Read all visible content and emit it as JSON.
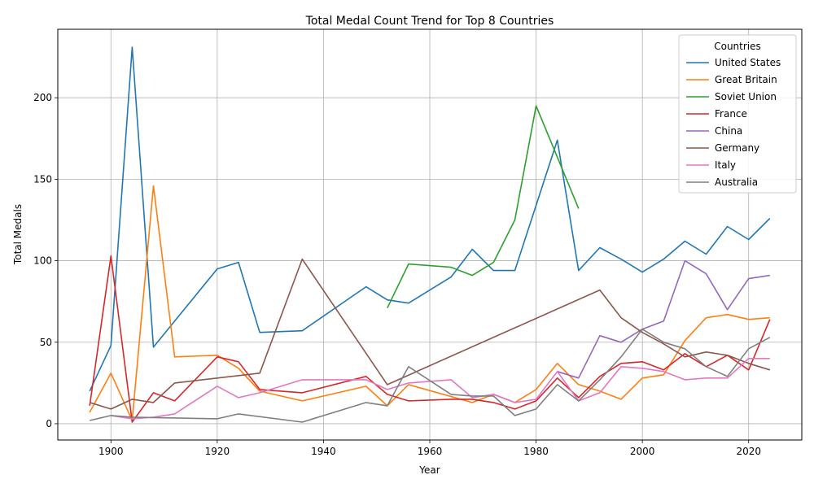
{
  "chart_data": {
    "type": "line",
    "title": "Total Medal Count Trend for Top 8 Countries",
    "xlabel": "Year",
    "ylabel": "Total Medals",
    "xlim": [
      1890,
      2030
    ],
    "ylim": [
      -10,
      242
    ],
    "xticks": [
      1900,
      1920,
      1940,
      1960,
      1980,
      2000,
      2020
    ],
    "yticks": [
      0,
      50,
      100,
      150,
      200
    ],
    "grid": true,
    "legend": {
      "title": "Countries",
      "placement": "top-right"
    },
    "series": [
      {
        "name": "United States",
        "color": "#1f77b4",
        "points": [
          [
            1896,
            20
          ],
          [
            1900,
            48
          ],
          [
            1904,
            231
          ],
          [
            1908,
            47
          ],
          [
            1920,
            95
          ],
          [
            1924,
            99
          ],
          [
            1928,
            56
          ],
          [
            1936,
            57
          ],
          [
            1948,
            84
          ],
          [
            1952,
            76
          ],
          [
            1956,
            74
          ],
          [
            1964,
            90
          ],
          [
            1968,
            107
          ],
          [
            1972,
            94
          ],
          [
            1976,
            94
          ],
          [
            1984,
            174
          ],
          [
            1988,
            94
          ],
          [
            1992,
            108
          ],
          [
            1996,
            101
          ],
          [
            2000,
            93
          ],
          [
            2004,
            101
          ],
          [
            2008,
            112
          ],
          [
            2012,
            104
          ],
          [
            2016,
            121
          ],
          [
            2020,
            113
          ],
          [
            2024,
            126
          ]
        ]
      },
      {
        "name": "Great Britain",
        "color": "#ff7f0e",
        "points": [
          [
            1896,
            7
          ],
          [
            1900,
            31
          ],
          [
            1904,
            2
          ],
          [
            1908,
            146
          ],
          [
            1912,
            41
          ],
          [
            1920,
            42
          ],
          [
            1924,
            34
          ],
          [
            1928,
            20
          ],
          [
            1936,
            14
          ],
          [
            1948,
            23
          ],
          [
            1952,
            11
          ],
          [
            1956,
            24
          ],
          [
            1968,
            13
          ],
          [
            1972,
            18
          ],
          [
            1976,
            13
          ],
          [
            1980,
            21
          ],
          [
            1984,
            37
          ],
          [
            1988,
            24
          ],
          [
            1992,
            20
          ],
          [
            1996,
            15
          ],
          [
            2000,
            28
          ],
          [
            2004,
            30
          ],
          [
            2008,
            51
          ],
          [
            2012,
            65
          ],
          [
            2016,
            67
          ],
          [
            2020,
            64
          ],
          [
            2024,
            65
          ]
        ]
      },
      {
        "name": "Soviet Union",
        "color": "#2ca02c",
        "points": [
          [
            1952,
            71
          ],
          [
            1956,
            98
          ],
          [
            1964,
            96
          ],
          [
            1968,
            91
          ],
          [
            1972,
            99
          ],
          [
            1976,
            125
          ],
          [
            1980,
            195
          ],
          [
            1988,
            132
          ]
        ]
      },
      {
        "name": "France",
        "color": "#d62728",
        "points": [
          [
            1896,
            11
          ],
          [
            1900,
            103
          ],
          [
            1904,
            1
          ],
          [
            1908,
            19
          ],
          [
            1912,
            14
          ],
          [
            1920,
            41
          ],
          [
            1924,
            38
          ],
          [
            1928,
            21
          ],
          [
            1936,
            19
          ],
          [
            1948,
            29
          ],
          [
            1952,
            18
          ],
          [
            1956,
            14
          ],
          [
            1964,
            15
          ],
          [
            1968,
            15
          ],
          [
            1972,
            13
          ],
          [
            1976,
            9
          ],
          [
            1980,
            14
          ],
          [
            1984,
            28
          ],
          [
            1988,
            16
          ],
          [
            1992,
            29
          ],
          [
            1996,
            37
          ],
          [
            2000,
            38
          ],
          [
            2004,
            33
          ],
          [
            2008,
            43
          ],
          [
            2012,
            35
          ],
          [
            2016,
            42
          ],
          [
            2020,
            33
          ],
          [
            2024,
            64
          ]
        ]
      },
      {
        "name": "China",
        "color": "#9467bd",
        "points": [
          [
            1984,
            32
          ],
          [
            1988,
            28
          ],
          [
            1992,
            54
          ],
          [
            1996,
            50
          ],
          [
            2000,
            58
          ],
          [
            2004,
            63
          ],
          [
            2008,
            100
          ],
          [
            2012,
            92
          ],
          [
            2016,
            70
          ],
          [
            2020,
            89
          ],
          [
            2024,
            91
          ]
        ]
      },
      {
        "name": "Germany",
        "color": "#8c564b",
        "points": [
          [
            1896,
            13
          ],
          [
            1900,
            9
          ],
          [
            1904,
            15
          ],
          [
            1908,
            13
          ],
          [
            1912,
            25
          ],
          [
            1928,
            31
          ],
          [
            1936,
            101
          ],
          [
            1952,
            24
          ],
          [
            1992,
            82
          ],
          [
            1996,
            65
          ],
          [
            2000,
            56
          ],
          [
            2004,
            49
          ],
          [
            2008,
            41
          ],
          [
            2012,
            44
          ],
          [
            2016,
            42
          ],
          [
            2020,
            37
          ],
          [
            2024,
            33
          ]
        ]
      },
      {
        "name": "Italy",
        "color": "#e377c2",
        "points": [
          [
            1900,
            5
          ],
          [
            1904,
            3
          ],
          [
            1908,
            4
          ],
          [
            1912,
            6
          ],
          [
            1920,
            23
          ],
          [
            1924,
            16
          ],
          [
            1928,
            19
          ],
          [
            1936,
            27
          ],
          [
            1948,
            27
          ],
          [
            1952,
            21
          ],
          [
            1956,
            25
          ],
          [
            1964,
            27
          ],
          [
            1968,
            16
          ],
          [
            1972,
            18
          ],
          [
            1976,
            13
          ],
          [
            1980,
            15
          ],
          [
            1984,
            32
          ],
          [
            1988,
            14
          ],
          [
            1992,
            19
          ],
          [
            1996,
            35
          ],
          [
            2000,
            34
          ],
          [
            2004,
            32
          ],
          [
            2008,
            27
          ],
          [
            2012,
            28
          ],
          [
            2016,
            28
          ],
          [
            2020,
            40
          ],
          [
            2024,
            40
          ]
        ]
      },
      {
        "name": "Australia",
        "color": "#7f7f7f",
        "points": [
          [
            1896,
            2
          ],
          [
            1900,
            5
          ],
          [
            1904,
            4
          ],
          [
            1920,
            3
          ],
          [
            1924,
            6
          ],
          [
            1936,
            1
          ],
          [
            1948,
            13
          ],
          [
            1952,
            11
          ],
          [
            1956,
            35
          ],
          [
            1964,
            18
          ],
          [
            1968,
            17
          ],
          [
            1972,
            17
          ],
          [
            1976,
            5
          ],
          [
            1980,
            9
          ],
          [
            1984,
            24
          ],
          [
            1988,
            14
          ],
          [
            1992,
            27
          ],
          [
            1996,
            41
          ],
          [
            2000,
            58
          ],
          [
            2004,
            50
          ],
          [
            2008,
            46
          ],
          [
            2012,
            35
          ],
          [
            2016,
            29
          ],
          [
            2020,
            46
          ],
          [
            2024,
            53
          ]
        ]
      }
    ]
  }
}
